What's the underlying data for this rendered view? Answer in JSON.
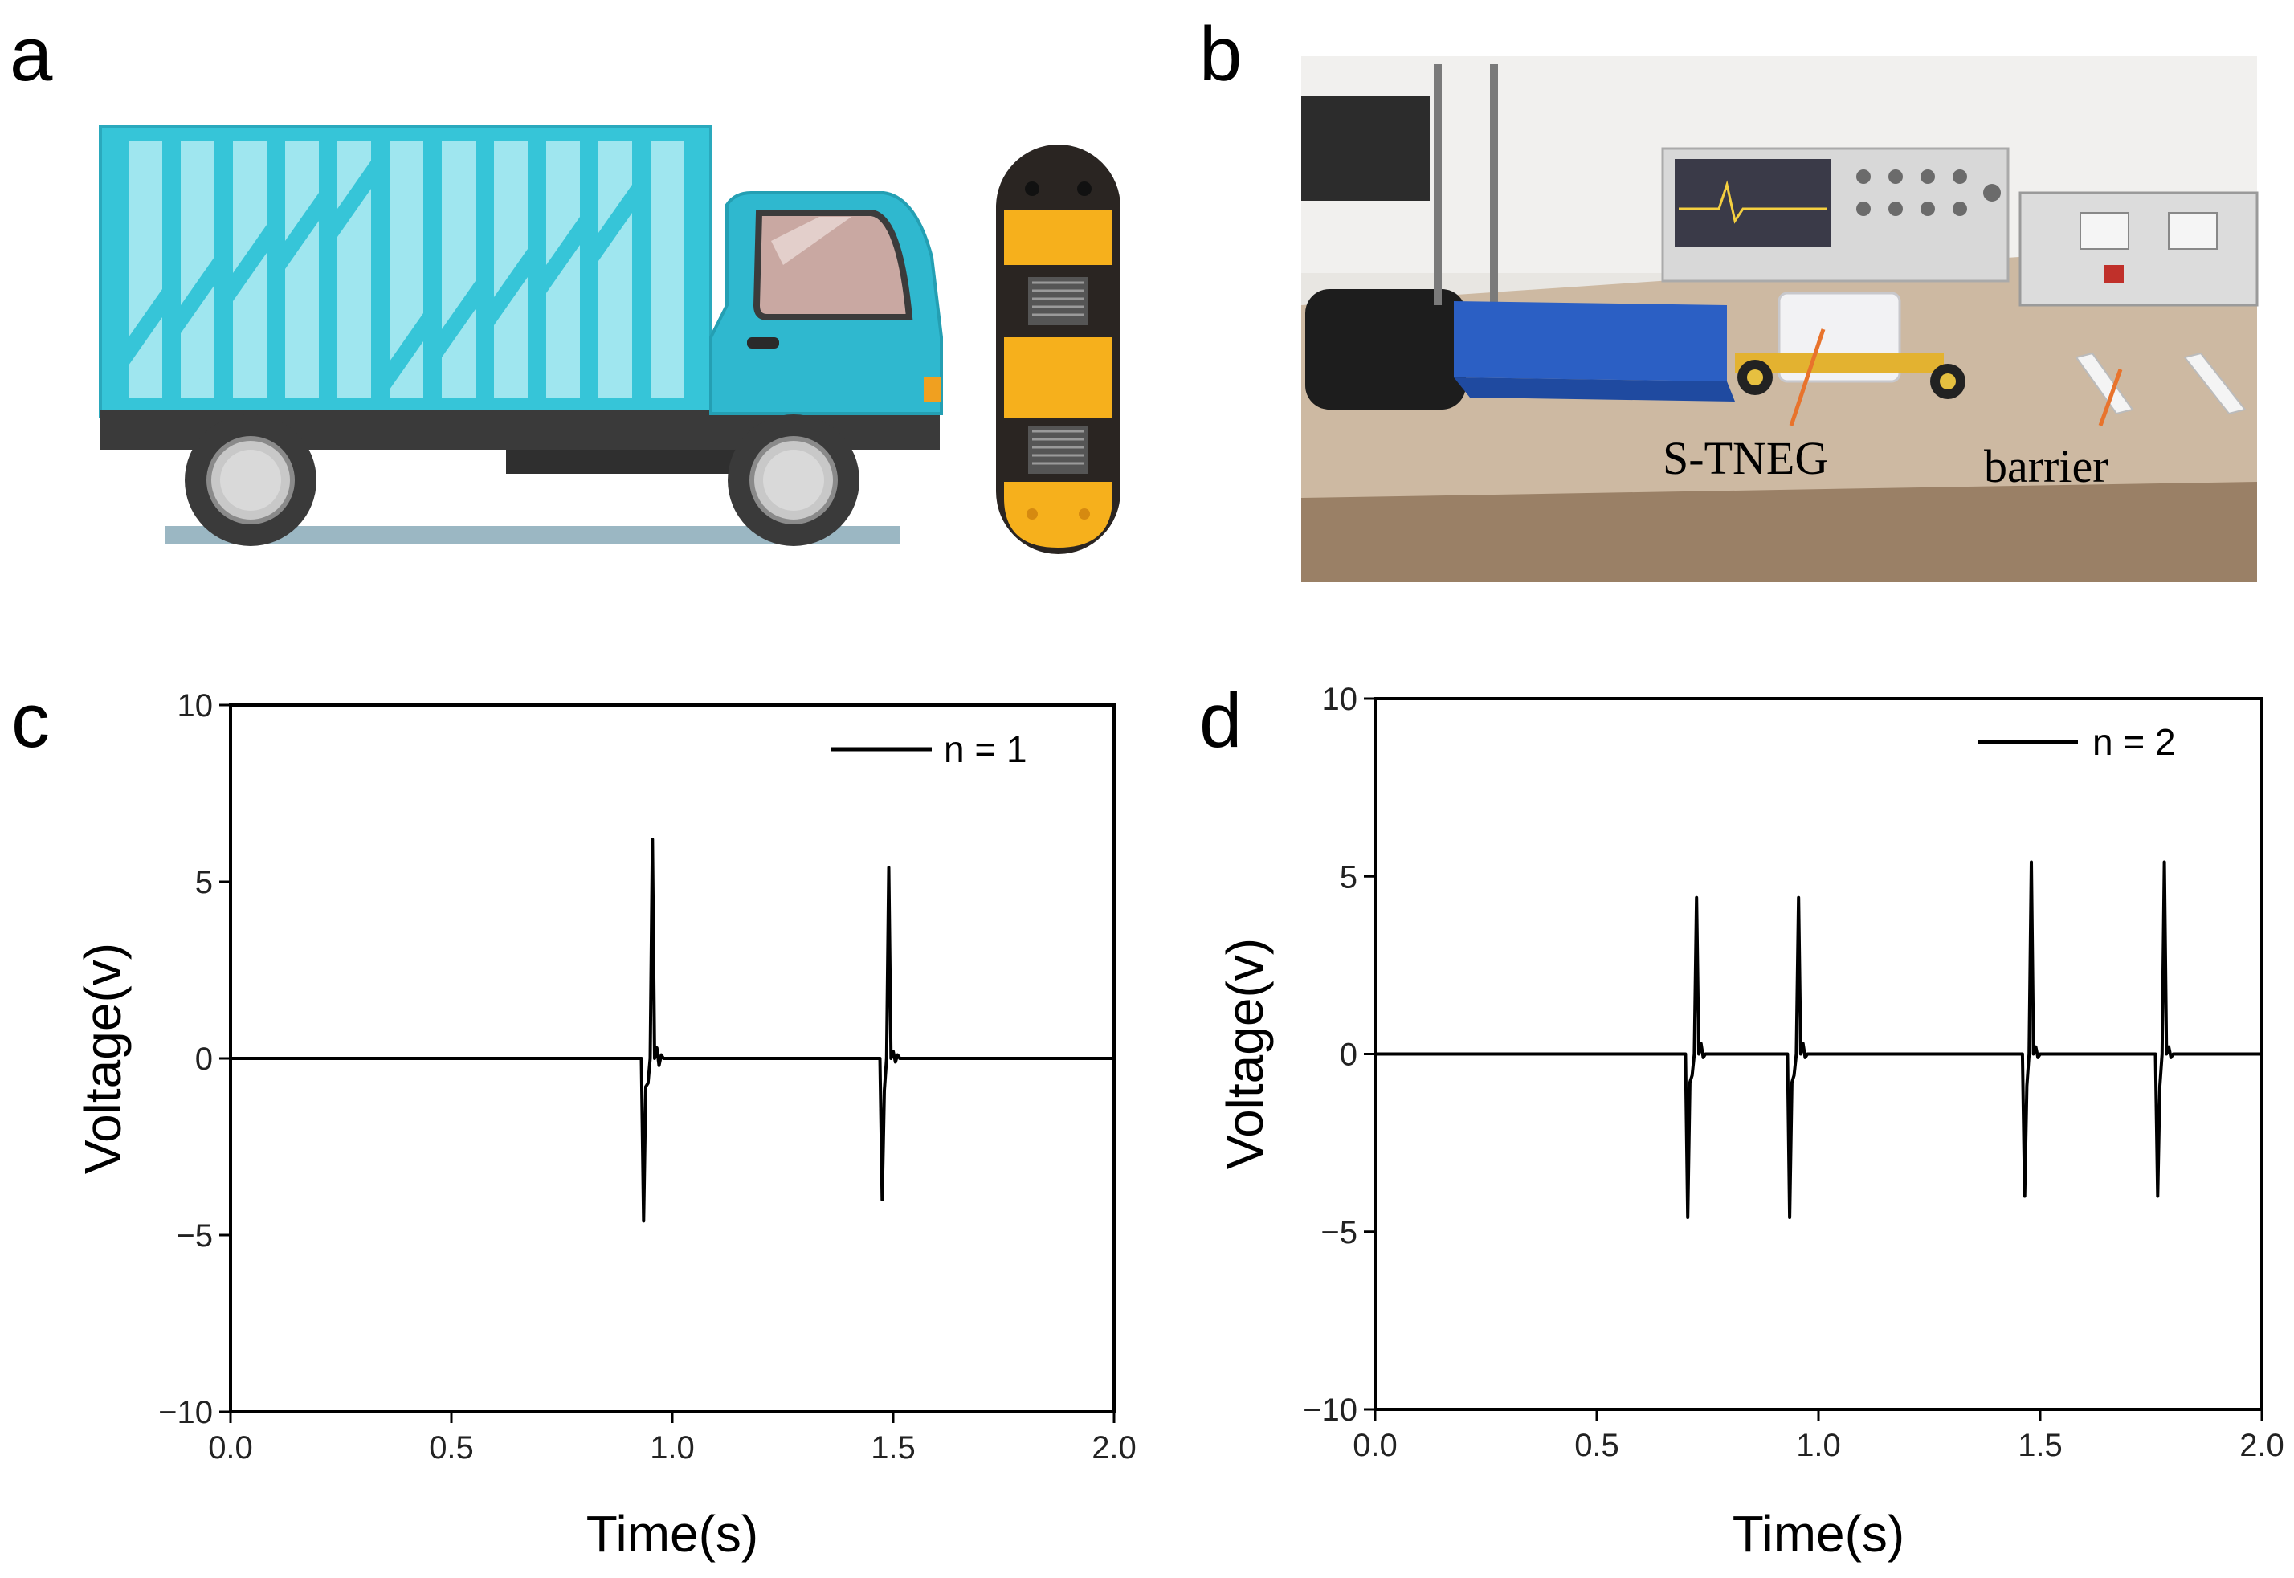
{
  "panel_labels": {
    "a": "a",
    "b": "b",
    "c": "c",
    "d": "d"
  },
  "panel_b": {
    "label_sneg": "S-TNEG",
    "label_barrier": "barrier",
    "pointer_color": "#e8732c"
  },
  "colors": {
    "truck_body": "#36c5d8",
    "truck_cab": "#2fb8cf",
    "bump_yellow": "#f6b01c",
    "bump_black": "#2a2522",
    "line": "#000000"
  },
  "chart_data": [
    {
      "type": "line",
      "panel": "c",
      "xlabel": "Time(s)",
      "ylabel": "Voltage(v)",
      "xlim": [
        0.0,
        2.0
      ],
      "ylim": [
        -10,
        10
      ],
      "xticks": [
        "0.0",
        "0.5",
        "1.0",
        "1.5",
        "2.0"
      ],
      "yticks": [
        "10",
        "5",
        "0",
        "−5",
        "−10"
      ],
      "legend": "top-right",
      "grid": false,
      "series": [
        {
          "name": "n = 1",
          "x": [
            0.0,
            0.93,
            0.935,
            0.94,
            0.945,
            0.95,
            0.955,
            0.96,
            0.965,
            0.97,
            0.975,
            0.98,
            0.985,
            0.99,
            1.0,
            1.47,
            1.475,
            1.48,
            1.485,
            1.49,
            1.495,
            1.5,
            1.505,
            1.51,
            1.515,
            1.52,
            2.0
          ],
          "y": [
            0,
            0,
            -4.6,
            -0.8,
            -0.7,
            0,
            6.2,
            0,
            0.3,
            -0.2,
            0.1,
            0,
            0,
            0,
            0,
            0,
            -4.0,
            -0.9,
            0,
            5.4,
            0,
            0.2,
            -0.1,
            0.1,
            0,
            0,
            0
          ]
        }
      ]
    },
    {
      "type": "line",
      "panel": "d",
      "xlabel": "Time(s)",
      "ylabel": "Voltage(v)",
      "xlim": [
        0.0,
        2.0
      ],
      "ylim": [
        -10,
        10
      ],
      "xticks": [
        "0.0",
        "0.5",
        "1.0",
        "1.5",
        "2.0"
      ],
      "yticks": [
        "10",
        "5",
        "0",
        "−5",
        "−10"
      ],
      "legend": "top-right",
      "grid": false,
      "series": [
        {
          "name": "n = 2",
          "x": [
            0.0,
            0.7,
            0.705,
            0.71,
            0.715,
            0.72,
            0.725,
            0.73,
            0.735,
            0.74,
            0.745,
            0.75,
            0.93,
            0.935,
            0.94,
            0.945,
            0.95,
            0.955,
            0.96,
            0.965,
            0.97,
            0.975,
            0.98,
            1.46,
            1.465,
            1.47,
            1.475,
            1.48,
            1.485,
            1.49,
            1.495,
            1.5,
            1.505,
            1.76,
            1.765,
            1.77,
            1.775,
            1.78,
            1.785,
            1.79,
            1.795,
            1.8,
            1.805,
            2.0
          ],
          "y": [
            0,
            0,
            -4.6,
            -0.8,
            -0.6,
            0,
            4.4,
            0,
            0.3,
            -0.1,
            0,
            0,
            0,
            -4.6,
            -0.8,
            -0.6,
            0,
            4.4,
            0,
            0.3,
            -0.1,
            0,
            0,
            0,
            -4.0,
            -0.9,
            0,
            5.4,
            0,
            0.2,
            -0.1,
            0,
            0,
            0,
            -4.0,
            -0.9,
            0,
            5.4,
            0,
            0.2,
            -0.1,
            0,
            0,
            0
          ]
        }
      ]
    }
  ]
}
